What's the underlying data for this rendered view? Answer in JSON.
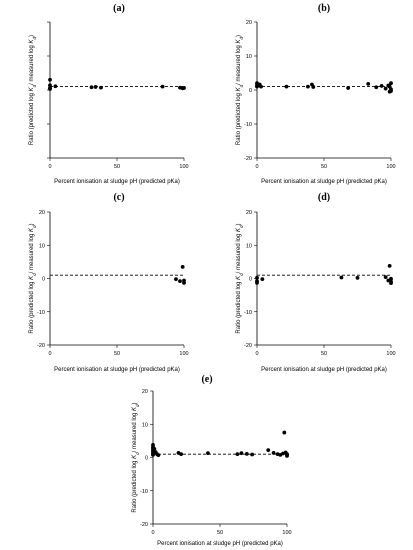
{
  "chart_data": [
    {
      "panel": "(a)",
      "type": "scatter",
      "xlabel": "Percent ionisation at sludge pH (predicted pKa)",
      "ylabel_parts": [
        "Ratio (predicted log ",
        "K",
        "d",
        "/ measured  log ",
        "K",
        "d",
        ")"
      ],
      "xlim": [
        0,
        100
      ],
      "ylim": [
        -20,
        20
      ],
      "xticks": [
        0,
        50,
        100
      ],
      "yticks": [
        -20,
        -10,
        0,
        10,
        20
      ],
      "show_xtick_labels": true,
      "show_ytick_labels": false,
      "reference_line": {
        "y": 1,
        "style": "dashed"
      },
      "points": [
        [
          0,
          3.0
        ],
        [
          0,
          1.4
        ],
        [
          0,
          0.6
        ],
        [
          0,
          0.3
        ],
        [
          4,
          1.1
        ],
        [
          31,
          0.8
        ],
        [
          34,
          0.9
        ],
        [
          38,
          0.7
        ],
        [
          84,
          1.0
        ],
        [
          97,
          0.7
        ],
        [
          99,
          0.5
        ],
        [
          100,
          0.6
        ]
      ]
    },
    {
      "panel": "(b)",
      "type": "scatter",
      "xlabel": "Percent ionisation at sludge pH (predicted pKa)",
      "ylabel_parts": [
        "Ratio (predicted log ",
        "K",
        "d",
        "/ measured  log ",
        "K",
        "d",
        ")"
      ],
      "xlim": [
        0,
        100
      ],
      "ylim": [
        -20,
        20
      ],
      "xticks": [
        0,
        50,
        100
      ],
      "yticks": [
        -20,
        -10,
        0,
        10,
        20
      ],
      "show_xtick_labels": true,
      "show_ytick_labels": true,
      "reference_line": {
        "y": 1,
        "style": "dashed"
      },
      "points": [
        [
          0,
          2.0
        ],
        [
          0,
          1.4
        ],
        [
          0,
          1.0
        ],
        [
          2,
          1.6
        ],
        [
          3,
          1.0
        ],
        [
          22,
          1.0
        ],
        [
          38,
          1.0
        ],
        [
          41,
          1.6
        ],
        [
          42,
          0.9
        ],
        [
          68,
          0.6
        ],
        [
          83,
          1.8
        ],
        [
          89,
          0.8
        ],
        [
          93,
          1.2
        ],
        [
          96,
          0.4
        ],
        [
          98,
          1.3
        ],
        [
          99,
          1.0
        ],
        [
          99,
          -0.5
        ],
        [
          100,
          2.0
        ],
        [
          100,
          0.2
        ],
        [
          100,
          -0.3
        ]
      ]
    },
    {
      "panel": "(c)",
      "type": "scatter",
      "xlabel": "Percent ionisation at sludge pH (predicted pKa)",
      "ylabel_parts": [
        "Ratio (predicted log ",
        "K",
        "d",
        "/ measured  log ",
        "K",
        "d",
        ")"
      ],
      "xlim": [
        0,
        100
      ],
      "ylim": [
        -20,
        20
      ],
      "xticks": [
        0,
        50,
        100
      ],
      "yticks": [
        -20,
        -10,
        0,
        10,
        20
      ],
      "show_xtick_labels": true,
      "show_ytick_labels": true,
      "reference_line": {
        "y": 1,
        "style": "dashed"
      },
      "points": [
        [
          94,
          -0.2
        ],
        [
          97,
          -0.8
        ],
        [
          99,
          3.5
        ],
        [
          100,
          -0.6
        ],
        [
          100,
          -1.3
        ]
      ]
    },
    {
      "panel": "(d)",
      "type": "scatter",
      "xlabel": "Percent ionisation at sludge pH (predicted pKa)",
      "ylabel_parts": [
        "Ratio (predicted log ",
        "K",
        "d",
        "/ measured  log ",
        "K",
        "d",
        ")"
      ],
      "xlim": [
        0,
        100
      ],
      "ylim": [
        -20,
        20
      ],
      "xticks": [
        0,
        50,
        100
      ],
      "yticks": [
        -20,
        -10,
        0,
        10,
        20
      ],
      "show_xtick_labels": true,
      "show_ytick_labels": true,
      "reference_line": {
        "y": 1,
        "style": "dashed"
      },
      "points": [
        [
          0,
          0.2
        ],
        [
          0,
          -0.8
        ],
        [
          0,
          -1.3
        ],
        [
          4,
          -0.2
        ],
        [
          63,
          0.3
        ],
        [
          75,
          0.2
        ],
        [
          96,
          0.4
        ],
        [
          98,
          -0.6
        ],
        [
          99,
          3.8
        ],
        [
          100,
          -0.1
        ],
        [
          100,
          -0.9
        ],
        [
          100,
          -1.4
        ]
      ]
    },
    {
      "panel": "(e)",
      "type": "scatter",
      "xlabel": "Percent ionisation at sludge pH (predicted pKa)",
      "ylabel_parts": [
        "Ratio (predicted log ",
        "K",
        "d",
        "/ measured  log ",
        "K",
        "d",
        ")"
      ],
      "xlim": [
        0,
        100
      ],
      "ylim": [
        -20,
        20
      ],
      "xticks": [
        0,
        50,
        100
      ],
      "yticks": [
        -20,
        -10,
        0,
        10,
        20
      ],
      "show_xtick_labels": true,
      "show_ytick_labels": true,
      "reference_line": {
        "y": 1,
        "style": "dashed"
      },
      "points": [
        [
          0,
          3.8
        ],
        [
          0,
          3.2
        ],
        [
          0,
          2.8
        ],
        [
          0,
          2.3
        ],
        [
          0,
          1.9
        ],
        [
          0,
          1.5
        ],
        [
          0,
          1.1
        ],
        [
          0,
          0.8
        ],
        [
          1,
          2.6
        ],
        [
          2,
          1.6
        ],
        [
          3,
          1.0
        ],
        [
          4,
          0.7
        ],
        [
          19,
          1.4
        ],
        [
          21,
          1.0
        ],
        [
          41,
          1.3
        ],
        [
          63,
          1.0
        ],
        [
          66,
          1.3
        ],
        [
          70,
          1.1
        ],
        [
          74,
          0.9
        ],
        [
          86,
          2.2
        ],
        [
          90,
          1.4
        ],
        [
          93,
          1.0
        ],
        [
          95,
          0.8
        ],
        [
          97,
          1.2
        ],
        [
          98,
          7.5
        ],
        [
          99,
          1.5
        ],
        [
          100,
          1.0
        ],
        [
          100,
          0.8
        ],
        [
          100,
          0.5
        ]
      ]
    }
  ]
}
